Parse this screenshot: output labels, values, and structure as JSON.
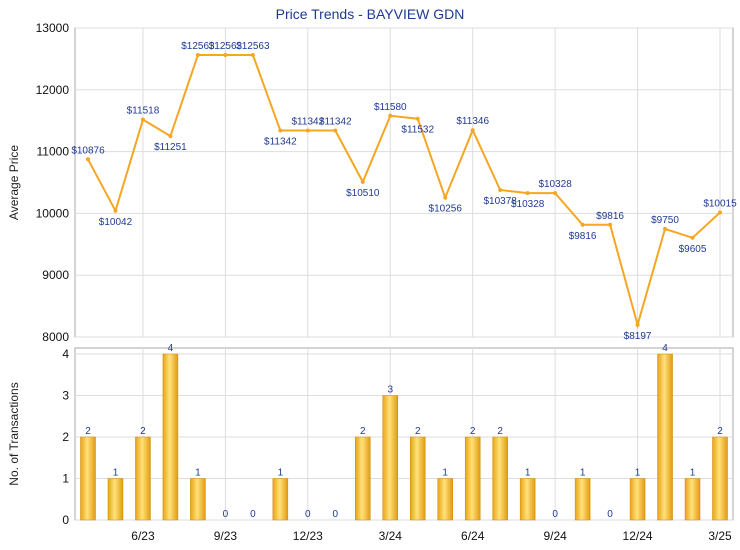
{
  "chart_data": [
    {
      "type": "line",
      "title": "Price Trends - BAYVIEW GDN",
      "ylabel": "Average Price",
      "ylim": [
        8000,
        13000
      ],
      "yticks": [
        8000,
        9000,
        10000,
        11000,
        12000,
        13000
      ],
      "grid": true,
      "color": "#f5a623",
      "series": [
        {
          "values": [
            10876,
            10042,
            11518,
            11251,
            12563,
            12563,
            12563,
            11342,
            11342,
            11342,
            10510,
            11580,
            11532,
            10256,
            11346,
            10378,
            10328,
            10328,
            9816,
            9816,
            8197,
            9750,
            9605,
            10015
          ],
          "labels": [
            "$10876",
            "$10042",
            "$11518",
            "$11251",
            "$12563",
            "$12563",
            "$12563",
            "$11342",
            "$11342",
            "$11342",
            "$10510",
            "$11580",
            "$11532",
            "$10256",
            "$11346",
            "$10378",
            "$10328",
            "$10328",
            "$9816",
            "$9816",
            "$8197",
            "$9750",
            "$9605",
            "$10015"
          ]
        }
      ]
    },
    {
      "type": "bar",
      "ylabel": "No. of Transactions",
      "ylim": [
        0,
        4
      ],
      "yticks": [
        0,
        1,
        2,
        3,
        4
      ],
      "grid": true,
      "color": "#f5a623",
      "values": [
        2,
        1,
        2,
        4,
        1,
        0,
        0,
        1,
        0,
        0,
        2,
        3,
        2,
        1,
        2,
        2,
        1,
        0,
        1,
        0,
        1,
        4,
        1,
        2
      ],
      "xtick_labels": [
        "6/23",
        "9/23",
        "12/23",
        "3/24",
        "6/24",
        "9/24",
        "12/24",
        "3/25"
      ],
      "xtick_index": [
        2,
        5,
        8,
        11,
        14,
        17,
        20,
        23
      ]
    }
  ]
}
